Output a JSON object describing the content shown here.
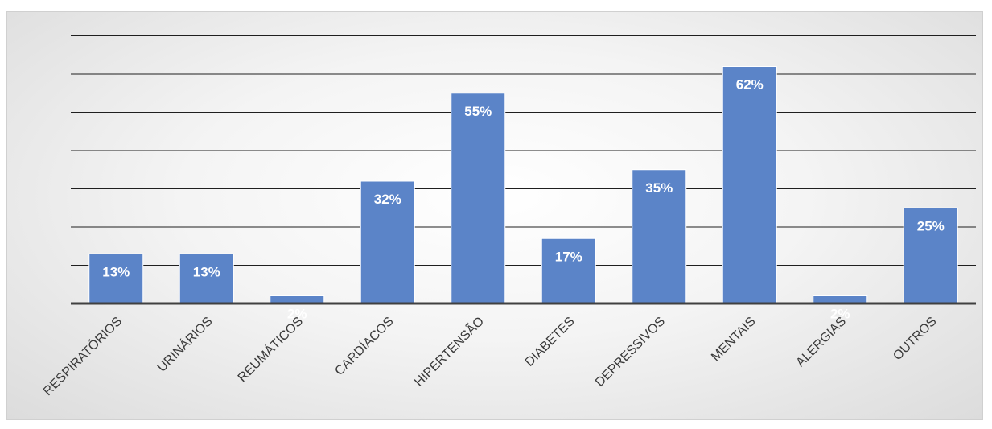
{
  "chart_data": {
    "type": "bar",
    "title": "",
    "xlabel": "",
    "ylabel": "",
    "categories": [
      "RESPIRATÓRIOS",
      "URINÁRIOS",
      "REUMÁTICOS",
      "CARDÍACOS",
      "HIPERTENSÃO",
      "DIABETES",
      "DEPRESSIVOS",
      "MENTAIS",
      "ALERGIAS",
      "OUTROS"
    ],
    "values": [
      13,
      13,
      2,
      32,
      55,
      17,
      35,
      62,
      2,
      25
    ],
    "data_labels": [
      "13%",
      "13%",
      "2%",
      "32%",
      "55%",
      "17%",
      "35%",
      "62%",
      "2%",
      "25%"
    ],
    "ylim": [
      0,
      70
    ],
    "grid": true,
    "legend": "none",
    "bar_color": "#5b84c8",
    "label_color": "#ffffff",
    "background": "#ececec"
  }
}
